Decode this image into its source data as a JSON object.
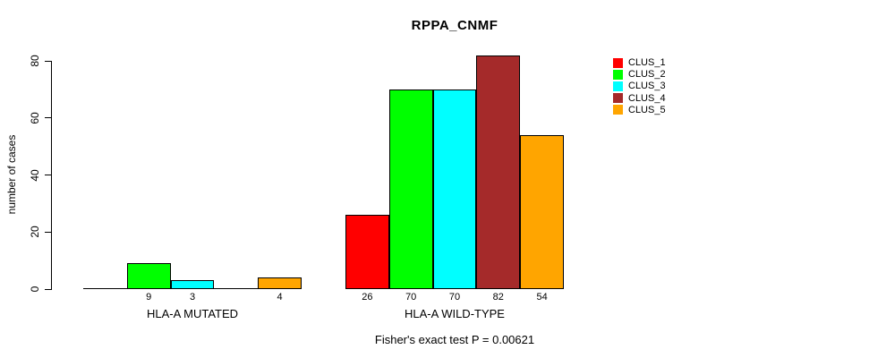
{
  "title": "RPPA_CNMF",
  "ylabel": "number of cases",
  "footer": "Fisher's exact test P = 0.00621",
  "legend": {
    "items": [
      {
        "label": "CLUS_1",
        "color": "#FF0000"
      },
      {
        "label": "CLUS_2",
        "color": "#00FF00"
      },
      {
        "label": "CLUS_3",
        "color": "#00FFFF"
      },
      {
        "label": "CLUS_4",
        "color": "#A52A2A"
      },
      {
        "label": "CLUS_5",
        "color": "#FFA500"
      }
    ]
  },
  "chart_data": {
    "type": "bar",
    "title": "RPPA_CNMF",
    "xlabel": "",
    "ylabel": "number of cases",
    "ylim": [
      0,
      80
    ],
    "yticks": [
      0,
      20,
      40,
      60,
      80
    ],
    "grid": false,
    "legend_position": "right",
    "groups": [
      "HLA-A MUTATED",
      "HLA-A WILD-TYPE"
    ],
    "series": [
      {
        "name": "CLUS_1",
        "color": "#FF0000",
        "values": [
          0,
          26
        ]
      },
      {
        "name": "CLUS_2",
        "color": "#00FF00",
        "values": [
          9,
          70
        ]
      },
      {
        "name": "CLUS_3",
        "color": "#00FFFF",
        "values": [
          3,
          70
        ]
      },
      {
        "name": "CLUS_4",
        "color": "#A52A2A",
        "values": [
          0,
          82
        ]
      },
      {
        "name": "CLUS_5",
        "color": "#FFA500",
        "values": [
          4,
          54
        ]
      }
    ],
    "bar_value_labels": [
      [
        "",
        "9",
        "3",
        "",
        "4"
      ],
      [
        "26",
        "70",
        "70",
        "82",
        "54"
      ]
    ],
    "annotation": "Fisher's exact test P = 0.00621"
  }
}
